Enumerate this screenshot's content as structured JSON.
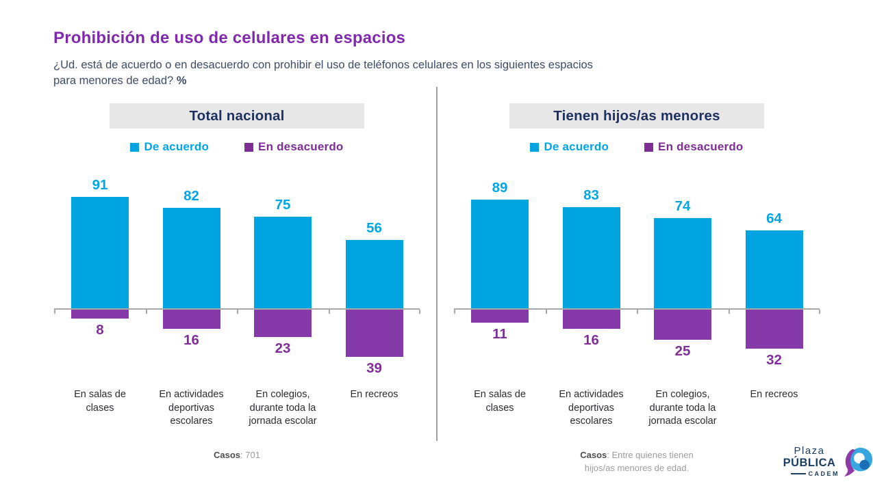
{
  "header": {
    "title": "Prohibición de uso de celulares en espacios",
    "question_line1": "¿Ud. está de acuerdo o en desacuerdo con prohibir el uso de teléfonos celulares en los siguientes espacios",
    "question_line2": "para menores de edad?",
    "percent_label": "%"
  },
  "colors": {
    "agree_bar": "#00A4E0",
    "disagree_bar": "#8639A8",
    "agree_text": "#00A6E4",
    "disagree_text": "#7E2E96",
    "title_purple": "#8028AE",
    "header_navy": "#1D3160",
    "chip_background": "#E7E7E7",
    "axis_gray": "#A8A8A8"
  },
  "chart_data": [
    {
      "type": "bar",
      "title": "Total nacional",
      "diverging": true,
      "legend_position": "top",
      "unit": "%",
      "ylim": [
        -45,
        100
      ],
      "categories": [
        "En salas de clases",
        "En actividades deportivas escolares",
        "En colegios, durante toda la jornada escolar",
        "En recreos"
      ],
      "series": [
        {
          "name": "De acuerdo",
          "values": [
            91,
            82,
            75,
            56
          ]
        },
        {
          "name": "En desacuerdo",
          "values": [
            8,
            16,
            23,
            39
          ]
        }
      ],
      "casos_label": "Casos",
      "casos_value": ": 701"
    },
    {
      "type": "bar",
      "title": "Tienen hijos/as menores",
      "diverging": true,
      "legend_position": "top",
      "unit": "%",
      "ylim": [
        -45,
        100
      ],
      "categories": [
        "En salas de clases",
        "En actividades deportivas escolares",
        "En colegios, durante toda la jornada escolar",
        "En recreos"
      ],
      "series": [
        {
          "name": "De acuerdo",
          "values": [
            89,
            83,
            74,
            64
          ]
        },
        {
          "name": "En desacuerdo",
          "values": [
            11,
            16,
            25,
            32
          ]
        }
      ],
      "casos_label": "Casos",
      "casos_value": ": Entre quienes tienen hijos/as menores de edad."
    }
  ],
  "logo": {
    "plaza": "Plaza",
    "publica": "PÚBLICA",
    "cadem": "CADEM"
  }
}
